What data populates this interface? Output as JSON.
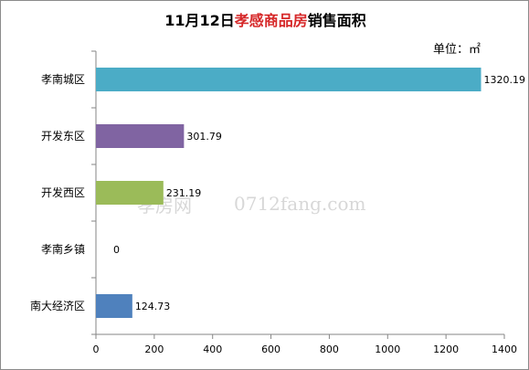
{
  "chart_data": {
    "type": "bar",
    "orientation": "horizontal",
    "title": {
      "prefix": "11月12日",
      "highlight": "孝感商品房",
      "suffix": "销售面积",
      "highlight_color": "#d62728"
    },
    "unit_label": "单位：㎡",
    "categories": [
      "孝南城区",
      "开发东区",
      "开发西区",
      "孝南乡镇",
      "南大经济区"
    ],
    "values": [
      1320.19,
      301.79,
      231.19,
      0,
      124.73
    ],
    "value_labels": [
      "1320.19",
      "301.79",
      "231.19",
      "0",
      "124.73"
    ],
    "colors": [
      "#4bacc6",
      "#8064a2",
      "#9bbb59",
      "#c0504d",
      "#4f81bd"
    ],
    "xlim": [
      0,
      1400
    ],
    "xticks": [
      0,
      200,
      400,
      600,
      800,
      1000,
      1200,
      1400
    ],
    "grid": false,
    "legend": "none"
  },
  "watermark": {
    "logo_text": "孝房网",
    "site_text": "0712fang.com"
  }
}
